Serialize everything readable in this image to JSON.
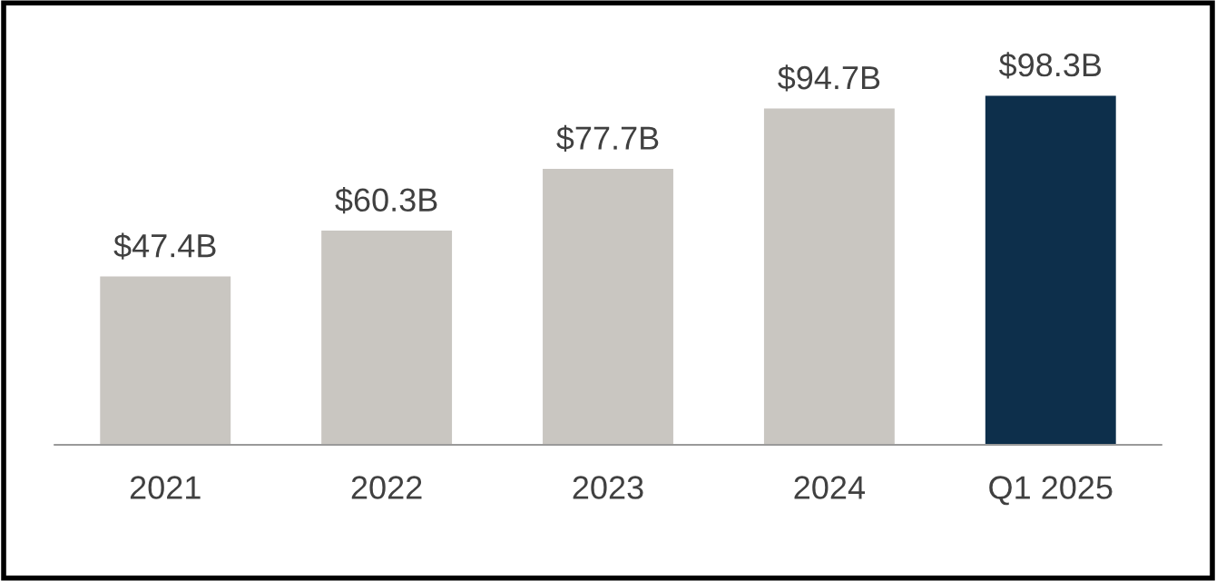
{
  "chart_data": {
    "type": "bar",
    "categories": [
      "2021",
      "2022",
      "2023",
      "2024",
      "Q1 2025"
    ],
    "values": [
      47.4,
      60.3,
      77.7,
      94.7,
      98.3
    ],
    "colors": [
      "#c9c6c1",
      "#c9c6c1",
      "#c9c6c1",
      "#c9c6c1",
      "#0d2f4b"
    ],
    "value_labels": [
      "$47.4B",
      "$60.3B",
      "$77.7B",
      "$94.7B",
      "$98.3B"
    ]
  }
}
